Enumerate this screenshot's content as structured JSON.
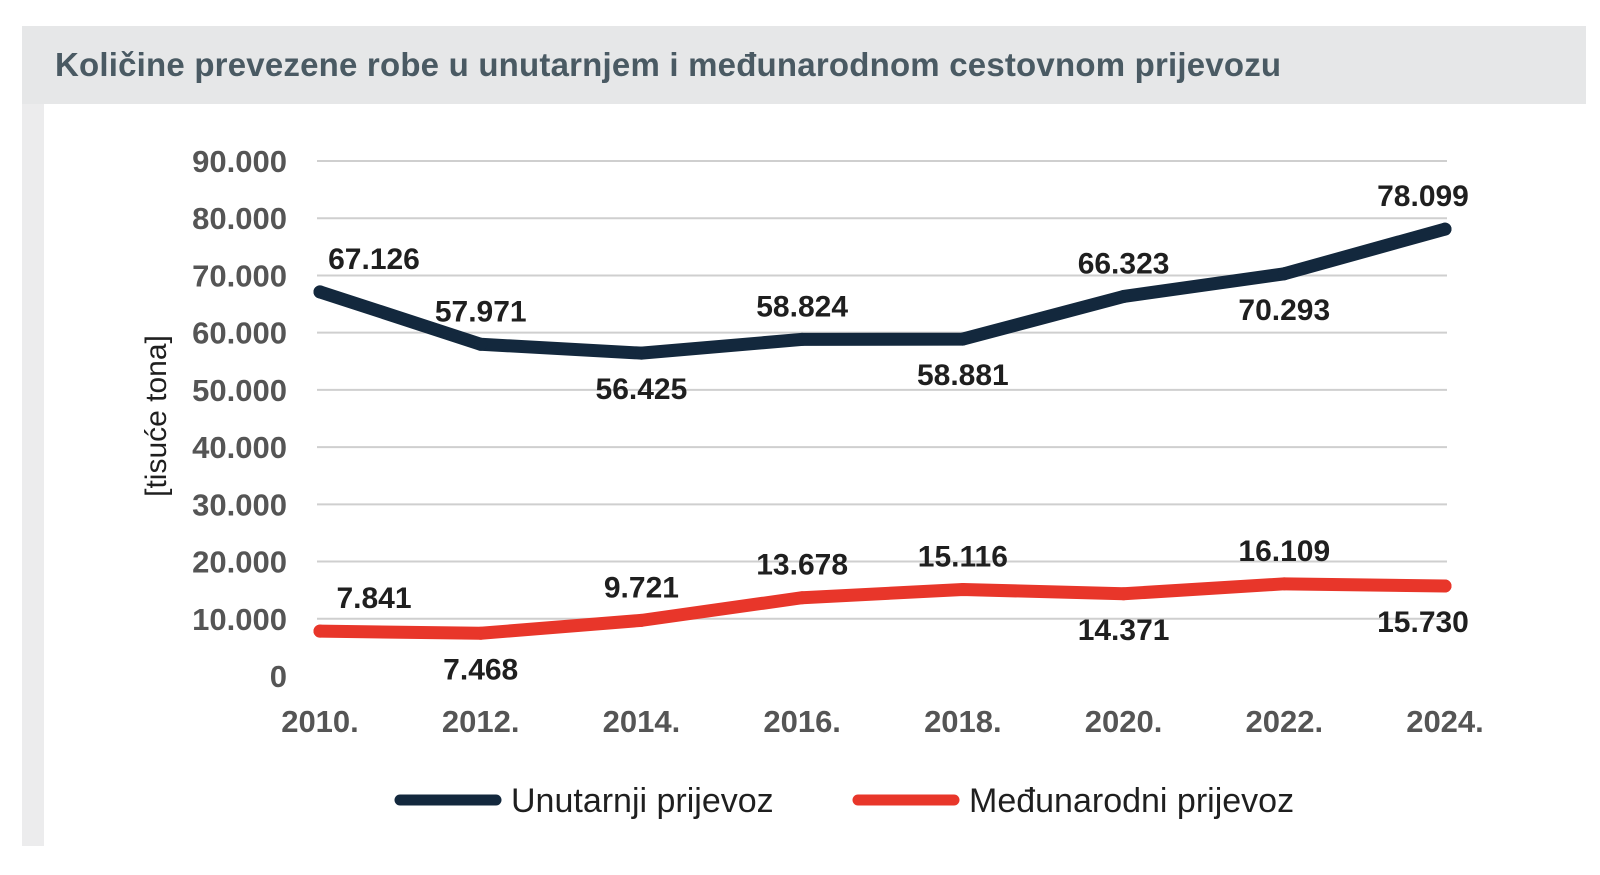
{
  "title": "Količine prevezene robe u unutarnjem i međunarodnom cestovnom prijevozu",
  "chart_data": {
    "type": "line",
    "categories": [
      "2010.",
      "2012.",
      "2014.",
      "2016.",
      "2018.",
      "2020.",
      "2022.",
      "2024."
    ],
    "series": [
      {
        "name": "Unutarnji prijevoz",
        "color": "#13283d",
        "values": [
          67126,
          57971,
          56425,
          58824,
          58881,
          66323,
          70293,
          78099
        ],
        "labels": [
          "67.126",
          "57.971",
          "56.425",
          "58.824",
          "58.881",
          "66.323",
          "70.293",
          "78.099"
        ],
        "label_side": [
          "above",
          "above",
          "below",
          "above",
          "below",
          "above",
          "below",
          "above"
        ]
      },
      {
        "name": "Međunarodni prijevoz",
        "color": "#e8362a",
        "values": [
          7841,
          7468,
          9721,
          13678,
          15116,
          14371,
          16109,
          15730
        ],
        "labels": [
          "7.841",
          "7.468",
          "9.721",
          "13.678",
          "15.116",
          "14.371",
          "16.109",
          "15.730"
        ],
        "label_side": [
          "above",
          "below",
          "above",
          "above",
          "above",
          "below",
          "above",
          "below"
        ]
      }
    ],
    "ylabel": "[tisuće tona]",
    "xlabel": "",
    "ylim": [
      0,
      90000
    ],
    "yticks": [
      0,
      10000,
      20000,
      30000,
      40000,
      50000,
      60000,
      70000,
      80000,
      90000
    ],
    "ytick_labels": [
      "0",
      "10.000",
      "20.000",
      "30.000",
      "40.000",
      "50.000",
      "60.000",
      "70.000",
      "80.000",
      "90.000"
    ],
    "grid": true,
    "legend_position": "bottom"
  }
}
